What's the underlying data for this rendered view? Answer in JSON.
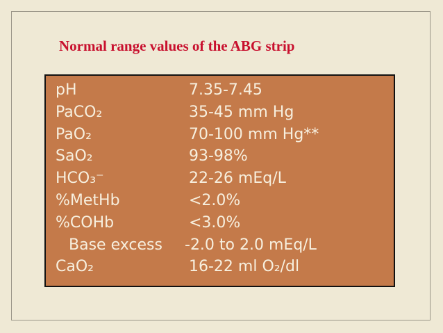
{
  "header": {
    "title": "Normal range values of the ABG strip"
  },
  "table": {
    "rows": [
      [
        "pH",
        "7.35-7.45"
      ],
      [
        "PaCO₂",
        "35-45 mm Hg"
      ],
      [
        "PaO₂",
        "70-100 mm Hg**"
      ],
      [
        "SaO₂",
        "93-98%"
      ],
      [
        "HCO₃⁻",
        "22-26 mEq/L"
      ],
      [
        "%MetHb",
        "<2.0%"
      ],
      [
        "%COHb",
        "<3.0%"
      ],
      [
        "Base excess",
        "-2.0 to 2.0 mEq/L"
      ],
      [
        "CaO₂",
        "16-22 ml O₂/dl"
      ]
    ]
  }
}
